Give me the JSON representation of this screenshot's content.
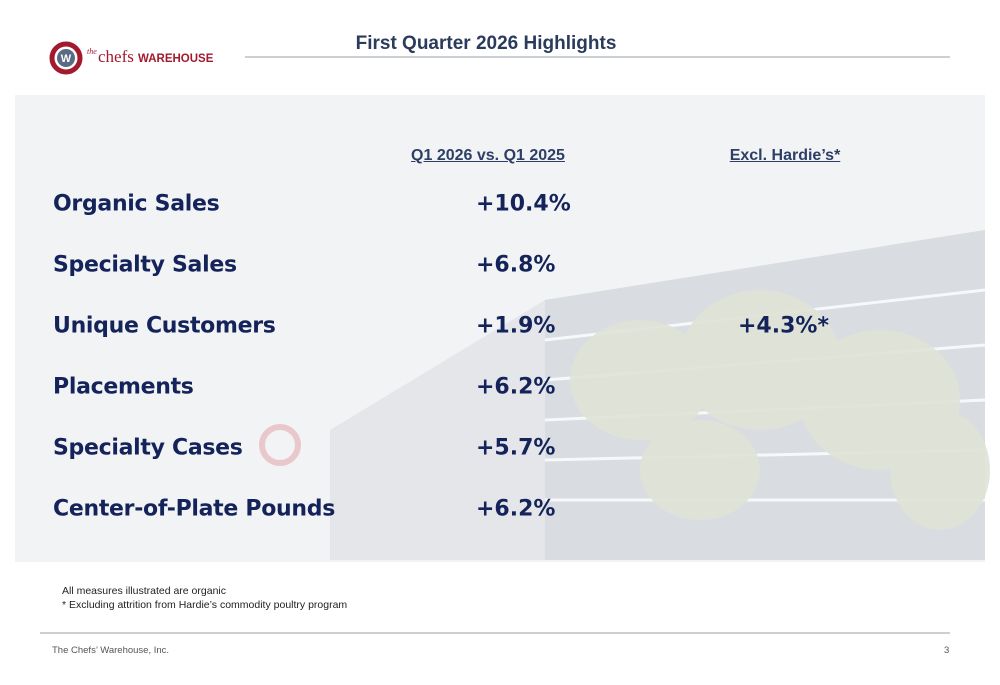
{
  "logo": {
    "mark": "W",
    "the": "the",
    "chefs": "chefs",
    "warehouse": "WAREHOUSE"
  },
  "header": {
    "title": "First Quarter 2026 Highlights"
  },
  "table": {
    "columns": [
      "Q1 2026 vs. Q1 2025",
      "Excl. Hardie’s*"
    ],
    "rows": [
      {
        "label": "Organic Sales",
        "change": "+10.4%"
      },
      {
        "label": "Specialty Sales",
        "change": "+6.8%"
      },
      {
        "label": "Unique Customers",
        "change": "+1.9%",
        "excl": "+4.3%*"
      },
      {
        "label": "Placements",
        "change": "+6.2%"
      },
      {
        "label": "Specialty Cases",
        "change": "+5.7%"
      },
      {
        "label": "Center-of-Plate Pounds",
        "change": "+6.2%"
      }
    ]
  },
  "notes": [
    "All measures illustrated are organic",
    "* Excluding attrition from Hardie’s commodity poultry program"
  ],
  "footer": {
    "company": "The Chefs’ Warehouse, Inc.",
    "page": "3"
  }
}
